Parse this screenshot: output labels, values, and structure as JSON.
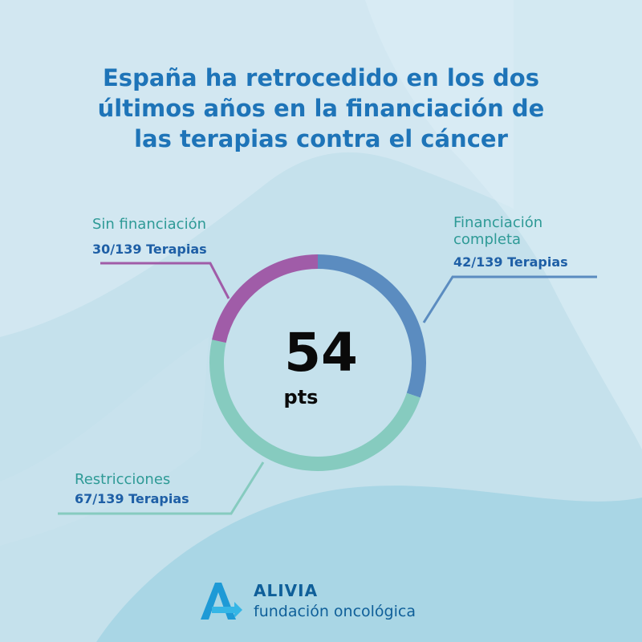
{
  "title_lines": [
    "España ha retrocedido en los dos",
    "últimos años en la financiación de",
    "las terapias contra el cáncer"
  ],
  "colors": {
    "title": "#1e74b8",
    "label_name": "#2e9a96",
    "label_count": "#1e5fa6",
    "sin_financiacion": "#a05ca8",
    "financiacion_completa": "#5b8cc0",
    "restricciones": "#86cbbf"
  },
  "chart_data": {
    "type": "pie",
    "total": 139,
    "categories": [
      "Financiación completa",
      "Restricciones",
      "Sin financiación"
    ],
    "values": [
      42,
      67,
      30
    ],
    "labels": {
      "sin": {
        "name": "Sin financiación",
        "count": "30/139 Terapias"
      },
      "full": {
        "name_lines": [
          "Financiación",
          "completa"
        ],
        "count": "42/139 Terapias"
      },
      "res": {
        "name": "Restricciones",
        "count": "67/139 Terapias"
      }
    },
    "center_value": "54",
    "center_unit": "pts"
  },
  "brand": {
    "name": "ALIVIA",
    "subtitle": "fundación oncológica",
    "logo_icon": "alivia-logo-icon"
  }
}
